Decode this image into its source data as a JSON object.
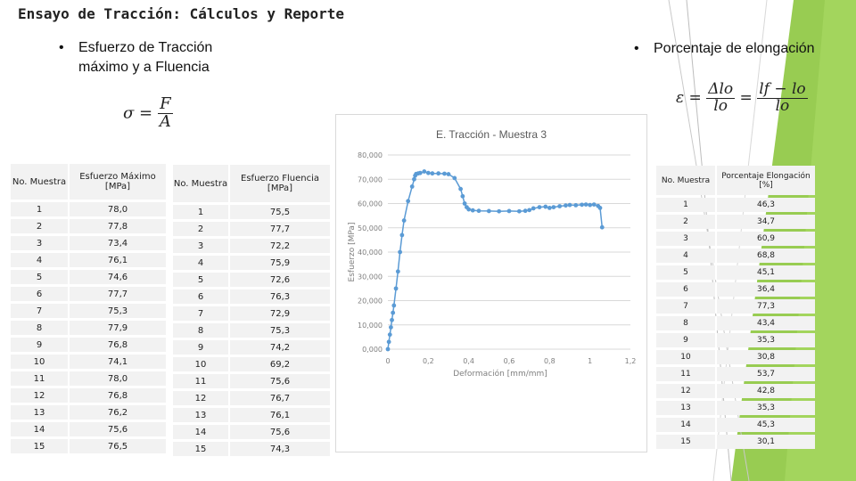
{
  "slide": {
    "title": "Ensayo de Tracción: Cálculos y Reporte",
    "bullet_left_line1": "Esfuerzo de Tracción",
    "bullet_left_line2": "máximo y a Fluencia",
    "bullet_right": "Porcentaje de elongación",
    "bullet_char": "•",
    "formula_stress": {
      "lhs": "σ",
      "eq": "=",
      "num": "F",
      "den": "A"
    },
    "formula_strain": {
      "lhs": "ε",
      "eq": "=",
      "num1": "Δlo",
      "den1": "lo",
      "eq2": "=",
      "num2": "lf − lo",
      "den2": "lo"
    },
    "accent_color": "#8dc63f"
  },
  "table_max": {
    "headers": [
      "No. Muestra",
      "Esfuerzo Máximo [MPa]"
    ],
    "rows": [
      [
        "1",
        "78,0"
      ],
      [
        "2",
        "77,8"
      ],
      [
        "3",
        "73,4"
      ],
      [
        "4",
        "76,1"
      ],
      [
        "5",
        "74,6"
      ],
      [
        "6",
        "77,7"
      ],
      [
        "7",
        "75,3"
      ],
      [
        "8",
        "77,9"
      ],
      [
        "9",
        "76,8"
      ],
      [
        "10",
        "74,1"
      ],
      [
        "11",
        "78,0"
      ],
      [
        "12",
        "76,8"
      ],
      [
        "13",
        "76,2"
      ],
      [
        "14",
        "75,6"
      ],
      [
        "15",
        "76,5"
      ]
    ]
  },
  "table_yield": {
    "headers": [
      "No. Muestra",
      "Esfuerzo Fluencia [MPa]"
    ],
    "rows": [
      [
        "1",
        "75,5"
      ],
      [
        "2",
        "77,7"
      ],
      [
        "3",
        "72,2"
      ],
      [
        "4",
        "75,9"
      ],
      [
        "5",
        "72,6"
      ],
      [
        "6",
        "76,3"
      ],
      [
        "7",
        "72,9"
      ],
      [
        "8",
        "75,3"
      ],
      [
        "9",
        "74,2"
      ],
      [
        "10",
        "69,2"
      ],
      [
        "11",
        "75,6"
      ],
      [
        "12",
        "76,7"
      ],
      [
        "13",
        "76,1"
      ],
      [
        "14",
        "75,6"
      ],
      [
        "15",
        "74,3"
      ]
    ]
  },
  "table_elong": {
    "headers": [
      "No. Muestra",
      "Porcentaje Elongación [%]"
    ],
    "rows": [
      [
        "1",
        "46,3"
      ],
      [
        "2",
        "34,7"
      ],
      [
        "3",
        "60,9"
      ],
      [
        "4",
        "68,8"
      ],
      [
        "5",
        "45,1"
      ],
      [
        "6",
        "36,4"
      ],
      [
        "7",
        "77,3"
      ],
      [
        "8",
        "43,4"
      ],
      [
        "9",
        "35,3"
      ],
      [
        "10",
        "30,8"
      ],
      [
        "11",
        "53,7"
      ],
      [
        "12",
        "42,8"
      ],
      [
        "13",
        "35,3"
      ],
      [
        "14",
        "45,3"
      ],
      [
        "15",
        "30,1"
      ]
    ]
  },
  "chart_data": {
    "type": "scatter",
    "title": "E. Tracción - Muestra 3",
    "xlabel": "Deformación [mm/mm]",
    "ylabel": "Esfuerzo [MPa]",
    "xlim": [
      0,
      1.2
    ],
    "ylim": [
      0,
      80
    ],
    "xticks": [
      "0",
      "0,2",
      "0,4",
      "0,6",
      "0,8",
      "1",
      "1,2"
    ],
    "yticks": [
      "0,000",
      "10,000",
      "20,000",
      "30,000",
      "40,000",
      "50,000",
      "60,000",
      "70,000",
      "80,000"
    ],
    "grid": true,
    "legend": "none",
    "marker_color": "#5b9bd5",
    "series": [
      {
        "x": [
          0,
          0.005,
          0.01,
          0.015,
          0.02,
          0.025,
          0.03,
          0.04,
          0.05,
          0.06,
          0.07,
          0.08,
          0.1,
          0.12,
          0.13,
          0.135,
          0.14,
          0.15,
          0.16,
          0.18,
          0.2,
          0.22,
          0.25,
          0.28,
          0.3,
          0.33,
          0.36,
          0.37,
          0.38,
          0.39,
          0.4,
          0.42,
          0.45,
          0.5,
          0.55,
          0.6,
          0.65,
          0.68,
          0.7,
          0.72,
          0.75,
          0.78,
          0.8,
          0.82,
          0.85,
          0.88,
          0.9,
          0.93,
          0.96,
          0.98,
          1.0,
          1.02,
          1.04,
          1.05,
          1.06
        ],
        "y": [
          0,
          3,
          6,
          9,
          12,
          15,
          18,
          25,
          32,
          40,
          47,
          53,
          61,
          67,
          70,
          71.5,
          72.2,
          72.4,
          72.6,
          73.2,
          72.6,
          72.4,
          72.4,
          72.3,
          72.1,
          70.5,
          66,
          63,
          60,
          58.5,
          57.6,
          57.2,
          57.0,
          56.9,
          56.8,
          56.9,
          56.8,
          57.0,
          57.3,
          58,
          58.5,
          58.7,
          58.2,
          58.5,
          58.9,
          59.2,
          59.4,
          59.3,
          59.5,
          59.6,
          59.4,
          59.6,
          59.0,
          58.2,
          50.2
        ]
      }
    ]
  }
}
